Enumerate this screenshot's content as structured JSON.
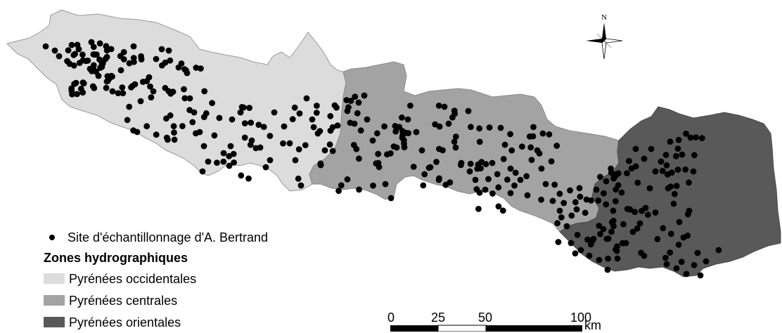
{
  "legend": {
    "sampling_site": "Site d'échantillonnage d'A. Bertrand",
    "title": "Zones hydrographiques",
    "zones": [
      {
        "label": "Pyrénées occidentales",
        "color": "#dcdcdc"
      },
      {
        "label": "Pyrénées centrales",
        "color": "#a3a3a3"
      },
      {
        "label": "Pyrénées orientales",
        "color": "#595959"
      }
    ]
  },
  "scale_bar": {
    "ticks": [
      "0",
      "25",
      "50",
      "100"
    ],
    "unit": "km"
  },
  "north_arrow": {
    "label": "N",
    "icon": "north-arrow-icon"
  },
  "colors": {
    "site_dot": "#000000",
    "zone_west": "#dcdcdc",
    "zone_central": "#a3a3a3",
    "zone_east": "#595959",
    "border": "#7a7a7a"
  }
}
